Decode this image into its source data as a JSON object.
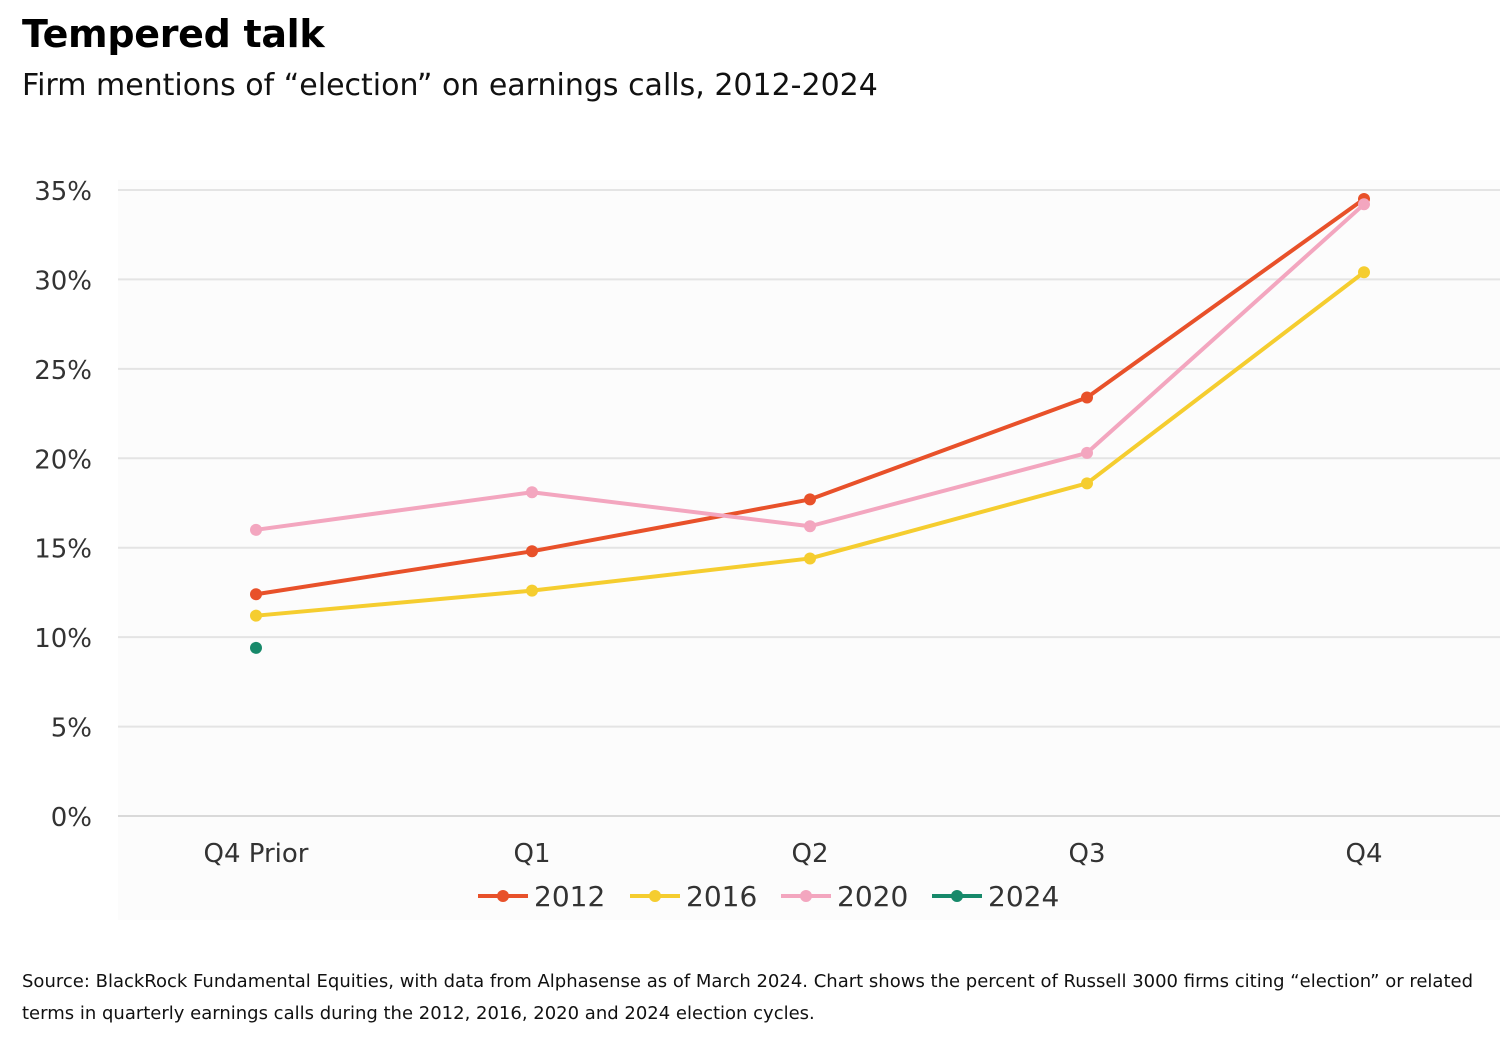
{
  "header": {
    "title": "Tempered talk",
    "subtitle": "Firm mentions of “election” on earnings calls, 2012-2024"
  },
  "footer": {
    "source": "Source: BlackRock Fundamental Equities, with data from Alphasense as of March 2024. Chart shows the percent of Russell 3000 firms citing “election” or related terms in quarterly earnings calls during the 2012, 2016, 2020 and 2024 election cycles."
  },
  "chart_data": {
    "type": "line",
    "title": "Firm mentions of “election” on earnings calls, 2012-2024",
    "xlabel": "",
    "ylabel": "",
    "categories": [
      "Q4 Prior",
      "Q1",
      "Q2",
      "Q3",
      "Q4"
    ],
    "ylim": [
      0,
      35
    ],
    "yticks": [
      0,
      5,
      10,
      15,
      20,
      25,
      30,
      35
    ],
    "ytick_labels": [
      "0%",
      "5%",
      "10%",
      "15%",
      "20%",
      "25%",
      "30%",
      "35%"
    ],
    "grid": true,
    "legend_position": "bottom-center",
    "series": [
      {
        "name": "2012",
        "color": "#e8512a",
        "values": [
          12.4,
          14.8,
          17.7,
          23.4,
          34.5
        ]
      },
      {
        "name": "2016",
        "color": "#f5cd2f",
        "values": [
          11.2,
          12.6,
          14.4,
          18.6,
          30.4
        ]
      },
      {
        "name": "2020",
        "color": "#f3a6bf",
        "values": [
          16.0,
          18.1,
          16.2,
          20.3,
          34.2
        ]
      },
      {
        "name": "2024",
        "color": "#17896a",
        "values": [
          9.4,
          null,
          null,
          null,
          null
        ]
      }
    ]
  }
}
